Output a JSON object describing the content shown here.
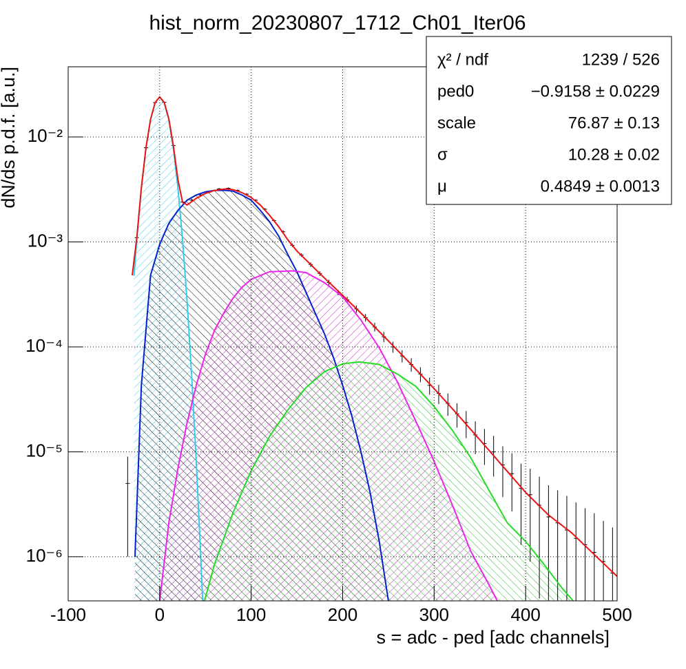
{
  "chart_data": {
    "type": "histogram",
    "title": "hist_norm_20230807_1712_Ch01_Iter06",
    "x_label": "s = adc - ped [adc channels]",
    "y_label": "dN/ds p.d.f. [a.u.]",
    "ylog": true,
    "grid": true,
    "xlim": [
      -100,
      500
    ],
    "xticks": [
      -100,
      0,
      100,
      200,
      300,
      400,
      500
    ],
    "ylim": [
      3.8e-07,
      0.0467
    ],
    "yticks": [
      {
        "value": 1e-06,
        "label": "10⁻⁶"
      },
      {
        "value": 1e-05,
        "label": "10⁻⁵"
      },
      {
        "value": 0.0001,
        "label": "10⁻⁴"
      },
      {
        "value": 0.001,
        "label": "10⁻³"
      },
      {
        "value": 0.01,
        "label": "10⁻²"
      }
    ],
    "stats": [
      {
        "label": "χ² / ndf",
        "value": "1239 / 526"
      },
      {
        "label": "ped0",
        "value": "−0.9158 ± 0.0229"
      },
      {
        "label": "scale",
        "value": "76.87 ± 0.13"
      },
      {
        "label": "σ",
        "value": "10.28 ± 0.02"
      },
      {
        "label": "μ",
        "value": "0.4849 ± 0.0013"
      }
    ],
    "histogram": {
      "color": "#000000",
      "x": [
        -35,
        -25,
        -15,
        -5,
        5,
        15,
        25,
        35,
        45,
        55,
        65,
        75,
        85,
        95,
        105,
        115,
        125,
        135,
        145,
        155,
        165,
        175,
        185,
        195,
        205,
        215,
        225,
        235,
        245,
        255,
        265,
        275,
        285,
        295,
        305,
        315,
        325,
        335,
        345,
        355,
        365,
        375,
        385,
        395,
        405,
        415,
        425,
        435,
        445,
        455,
        465,
        475,
        485,
        495
      ],
      "values": [
        5e-06,
        0.0011,
        0.0079,
        0.0213,
        0.0214,
        0.0083,
        0.0024,
        0.0025,
        0.0028,
        0.003,
        0.0032,
        0.00325,
        0.0031,
        0.00285,
        0.0025,
        0.00205,
        0.0016,
        0.00125,
        0.00093,
        0.00075,
        0.00061,
        0.0005,
        0.00041,
        0.00033,
        0.00028,
        0.00023,
        0.00019,
        0.000155,
        0.000125,
        0.0001,
        8.2e-05,
        6.8e-05,
        5.5e-05,
        4.3e-05,
        3.6e-05,
        2.9e-05,
        2.3e-05,
        1.9e-05,
        1.45e-05,
        1.2e-05,
        1e-05,
        7.5e-06,
        6.2e-06,
        4.5e-06,
        3.9e-06,
        3.1e-06,
        2.4e-06,
        2.1e-06,
        1.8e-06,
        1.5e-06,
        1.3e-06,
        1.1e-06,
        9e-07,
        7e-07
      ],
      "errors": [
        4e-06,
        5e-05,
        0.00012,
        0.0002,
        0.0002,
        0.00012,
        6e-05,
        6e-05,
        6e-05,
        6e-05,
        6e-05,
        6e-05,
        6e-05,
        6e-05,
        5e-05,
        5e-05,
        4e-05,
        4e-05,
        3.5e-05,
        3e-05,
        3e-05,
        2.5e-05,
        2.5e-05,
        2e-05,
        2e-05,
        1.8e-05,
        1.6e-05,
        1.5e-05,
        1.4e-05,
        1.2e-05,
        1.1e-05,
        1e-05,
        9e-06,
        8e-06,
        7.5e-06,
        7e-06,
        6e-06,
        5.5e-06,
        5e-06,
        4.5e-06,
        4.2e-06,
        3.8e-06,
        3.5e-06,
        3.2e-06,
        3e-06,
        2.7e-06,
        2.4e-06,
        2.2e-06,
        2e-06,
        1.8e-06,
        1.6e-06,
        1.5e-06,
        1.3e-06,
        1.2e-06
      ]
    },
    "curves": [
      {
        "color": "#33ccee",
        "hatch": "#33ccee",
        "x": [
          -28,
          -25,
          -20,
          -15,
          -10,
          -5,
          0,
          5,
          10,
          15,
          20,
          25,
          30,
          35,
          40,
          45,
          47
        ],
        "values": [
          0.000476,
          0.00105,
          0.00325,
          0.00779,
          0.01456,
          0.02118,
          0.024,
          0.02118,
          0.01456,
          0.00779,
          0.00325,
          0.00105,
          0.000267,
          5.25e-05,
          8.05e-06,
          9.6e-07,
          3.8e-07
        ]
      },
      {
        "color": "#0022cc",
        "hatch": "#000000",
        "x": [
          -27,
          -20,
          -10,
          0,
          10,
          20,
          30,
          40,
          50,
          60,
          72,
          80,
          90,
          100,
          110,
          120,
          130,
          140,
          150,
          160,
          170,
          180,
          190,
          200,
          210,
          220,
          230,
          240,
          250
        ],
        "values": [
          1e-06,
          4.3e-05,
          0.00048,
          0.00095,
          0.0015,
          0.002,
          0.0025,
          0.0028,
          0.003,
          0.0031,
          0.0031,
          0.00305,
          0.0028,
          0.0025,
          0.002,
          0.00156,
          0.00114,
          0.00076,
          0.00052,
          0.00033,
          0.00021,
          0.000134,
          7.9e-05,
          4.3e-05,
          2.2e-05,
          1e-05,
          4.1e-06,
          1.4e-06,
          3.8e-07
        ]
      },
      {
        "color": "#ee22ee",
        "hatch": "#cc22cc",
        "x": [
          0,
          10,
          20,
          30,
          40,
          50,
          60,
          70,
          80,
          90,
          100,
          120,
          145,
          160,
          180,
          200,
          220,
          240,
          260,
          280,
          300,
          320,
          340,
          360,
          369
        ],
        "values": [
          3.8e-07,
          2.1e-06,
          7e-06,
          1.9e-05,
          4.3e-05,
          8.5e-05,
          0.000144,
          0.00021,
          0.00029,
          0.00037,
          0.00044,
          0.00052,
          0.00053,
          0.00051,
          0.00041,
          0.0003,
          0.00018,
          9.8e-05,
          4.6e-05,
          1.96e-05,
          8.1e-06,
          3.1e-06,
          1.13e-06,
          5.4e-07,
          3.8e-07
        ]
      },
      {
        "color": "#22dd22",
        "hatch": "#22bb22",
        "x": [
          49,
          60,
          80,
          100,
          120,
          140,
          160,
          180,
          200,
          218,
          240,
          260,
          280,
          300,
          320,
          340,
          360,
          380,
          400,
          420,
          440,
          452
        ],
        "values": [
          3.8e-07,
          8.5e-07,
          2.6e-06,
          6.6e-06,
          1.4e-05,
          2.5e-05,
          4.1e-05,
          5.8e-05,
          6.9e-05,
          7.2e-05,
          6.8e-05,
          5.5e-05,
          4.2e-05,
          2.7e-05,
          1.6e-05,
          8.8e-06,
          4.3e-06,
          2.1e-06,
          1.4e-06,
          8.5e-07,
          5e-07,
          3.8e-07
        ]
      },
      {
        "color": "#ee1111",
        "x": [
          -30,
          -25,
          -20,
          -15,
          -10,
          -5,
          0,
          5,
          10,
          15,
          20,
          25,
          30,
          40,
          50,
          60,
          72,
          80,
          90,
          100,
          110,
          120,
          130,
          140,
          150,
          175,
          200,
          225,
          250,
          275,
          300,
          325,
          350,
          375,
          400,
          425,
          450,
          475,
          500
        ],
        "values": [
          0.00048,
          0.0011,
          0.0033,
          0.0079,
          0.0147,
          0.0213,
          0.0241,
          0.0214,
          0.0149,
          0.0082,
          0.0039,
          0.0024,
          0.00225,
          0.0026,
          0.0029,
          0.0031,
          0.0032,
          0.00315,
          0.00295,
          0.00265,
          0.00225,
          0.0018,
          0.0014,
          0.00105,
          0.00082,
          0.0005,
          0.00031,
          0.00019,
          0.000114,
          6.8e-05,
          4e-05,
          2.3e-05,
          1.3e-05,
          7.3e-06,
          4.1e-06,
          2.5e-06,
          1.7e-06,
          1.05e-06,
          6.5e-07
        ]
      }
    ]
  }
}
